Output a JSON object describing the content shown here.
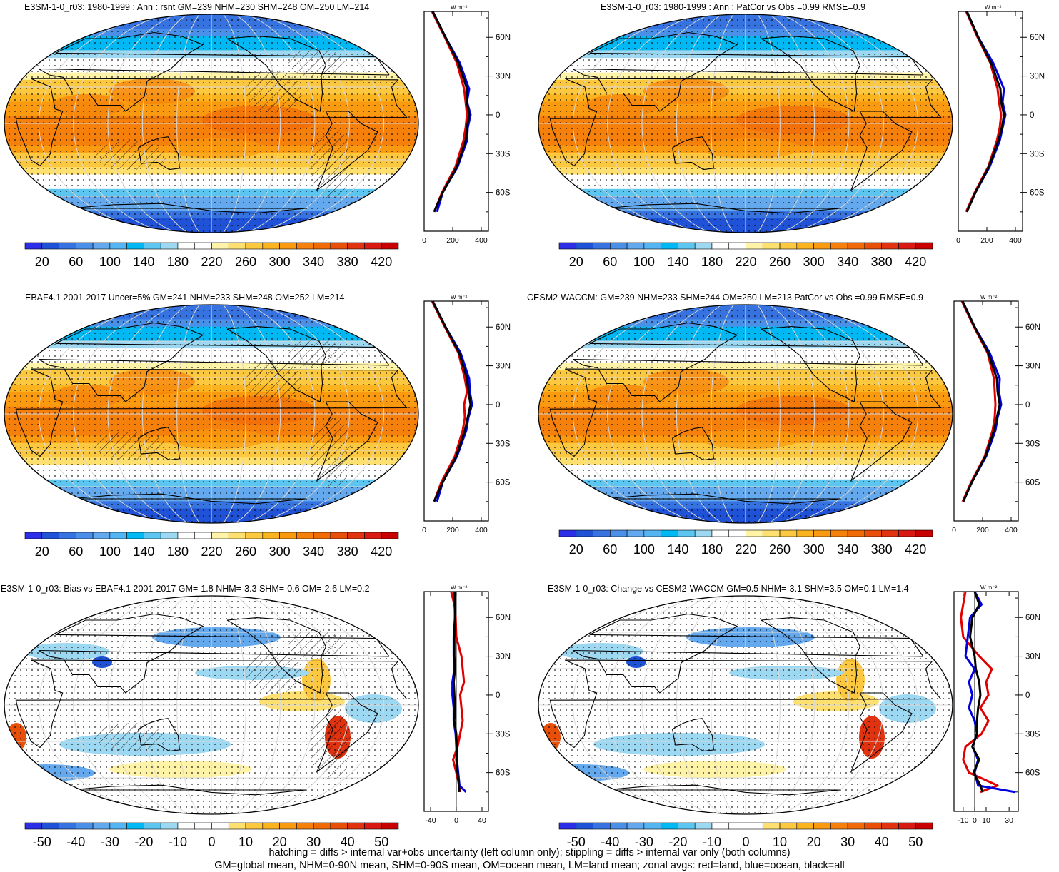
{
  "palette": [
    "#2d2ee8",
    "#1f52d6",
    "#3672e0",
    "#4a8fe8",
    "#64a8ee",
    "#55b4f2",
    "#00b9f4",
    "#5cc6f0",
    "#9dd8f2",
    "#ffffff",
    "#ffffff",
    "#fff3a8",
    "#fde070",
    "#fcc840",
    "#fbb420",
    "#f99a10",
    "#f5800c",
    "#f06a08",
    "#e8500a",
    "#e23310",
    "#d91a12",
    "#c80000"
  ],
  "panels": [
    {
      "title": "E3SM-1-0_r03: 1980-1999 : Ann : rsnt GM=239 NHM=230 SHM=248 OM=250 LM=214",
      "kind": "abs",
      "hatch": true
    },
    {
      "title": "E3SM-1-0_r03: 1980-1999 : Ann : PatCor vs Obs =0.99 RMSE=0.9",
      "kind": "abs",
      "hatch": false
    },
    {
      "title": "EBAF4.1 2001-2017 Uncer=5% GM=241 NHM=233 SHM=248 OM=252 LM=214",
      "kind": "abs",
      "hatch": true
    },
    {
      "title": "CESM2-WACCM: GM=239 NHM=233 SHM=244 OM=250 LM=213 PatCor vs Obs =0.99 RMSE=0.9",
      "kind": "abs",
      "hatch": false
    },
    {
      "title": "E3SM-1-0_r03: Bias vs EBAF4.1 2001-2017 GM=-1.8 NHM=-3.3 SHM=-0.6 OM=-2.6 LM=0.2",
      "kind": "diff",
      "hatch": true
    },
    {
      "title": "E3SM-1-0_r03: Change vs CESM2-WACCM GM=0.5 NHM=-3.1 SHM=3.5 OM=0.1 LM=1.4",
      "kind": "diff",
      "hatch": false
    }
  ],
  "units": "W m⁻²",
  "lat_labels": [
    "60N",
    "30N",
    "0",
    "30S",
    "60S"
  ],
  "abs_colorbar_labels": [
    "20",
    "60",
    "100",
    "140",
    "180",
    "220",
    "260",
    "300",
    "340",
    "380",
    "420"
  ],
  "diff_colorbar_labels": [
    "-50",
    "-40",
    "-30",
    "-20",
    "-10",
    "0",
    "10",
    "20",
    "30",
    "40",
    "50"
  ],
  "footer": {
    "line1": "hatching = diffs > internal var+obs uncertainty (left column only); stippling = diffs > internal var only (both columns)",
    "line2": "GM=global mean, NHM=0-90N mean, SHM=0-90S mean, OM=ocean mean, LM=land mean; zonal avgs: red=land, blue=ocean, black=all"
  },
  "chart_data": [
    {
      "type": "heatmap",
      "title": "E3SM-1-0_r03: 1980-1999 : Ann : rsnt GM=239 NHM=230 SHM=248 OM=250 LM=214",
      "colorbar_ticks": [
        20,
        60,
        100,
        140,
        180,
        220,
        260,
        300,
        340,
        380,
        420
      ],
      "zonal_mean": {
        "type": "line",
        "xlim": [
          0,
          450
        ],
        "xticks": [
          0,
          200,
          400
        ],
        "ylabel_ticks": [
          "60N",
          "30N",
          "0",
          "30S",
          "60S"
        ],
        "lat": [
          80,
          60,
          40,
          20,
          10,
          0,
          -10,
          -20,
          -40,
          -60,
          -75
        ],
        "series": [
          {
            "name": "all",
            "color": "#000000",
            "values": [
              60,
              150,
              240,
              300,
              300,
              315,
              300,
              290,
              230,
              130,
              70
            ]
          },
          {
            "name": "ocean",
            "color": "#0000e0",
            "values": [
              60,
              150,
              250,
              315,
              300,
              325,
              305,
              300,
              235,
              130,
              90
            ]
          },
          {
            "name": "land",
            "color": "#e00000",
            "values": [
              55,
              145,
              230,
              280,
              290,
              300,
              290,
              275,
              220,
              125,
              70
            ]
          }
        ]
      }
    },
    {
      "type": "heatmap",
      "title": "E3SM-1-0_r03: 1980-1999 : Ann : PatCor vs Obs =0.99 RMSE=0.9",
      "colorbar_ticks": [
        20,
        60,
        100,
        140,
        180,
        220,
        260,
        300,
        340,
        380,
        420
      ],
      "zonal_mean": {
        "type": "line",
        "xlim": [
          0,
          450
        ],
        "xticks": [
          0,
          200,
          400
        ],
        "ylabel_ticks": [
          "60N",
          "30N",
          "0",
          "30S",
          "60S"
        ],
        "lat": [
          80,
          60,
          40,
          20,
          10,
          0,
          -10,
          -20,
          -40,
          -60,
          -75
        ],
        "series": [
          {
            "name": "all",
            "color": "#000000",
            "values": [
              60,
              140,
              230,
              295,
              300,
              320,
              305,
              280,
              215,
              120,
              60
            ]
          },
          {
            "name": "ocean",
            "color": "#0000e0",
            "values": [
              60,
              140,
              245,
              320,
              310,
              330,
              310,
              290,
              220,
              120,
              60
            ]
          },
          {
            "name": "land",
            "color": "#e00000",
            "values": [
              55,
              135,
              225,
              275,
              285,
              300,
              290,
              270,
              210,
              115,
              55
            ]
          }
        ]
      }
    },
    {
      "type": "heatmap",
      "title": "EBAF4.1 2001-2017 Uncer=5% GM=241 NHM=233 SHM=248 OM=252 LM=214",
      "colorbar_ticks": [
        20,
        60,
        100,
        140,
        180,
        220,
        260,
        300,
        340,
        380,
        420
      ],
      "zonal_mean": {
        "type": "line",
        "xlim": [
          0,
          450
        ],
        "xticks": [
          0,
          200,
          400
        ],
        "ylabel_ticks": [
          "60N",
          "30N",
          "0",
          "30S",
          "60S"
        ],
        "lat": [
          80,
          60,
          40,
          20,
          10,
          0,
          -10,
          -20,
          -40,
          -60,
          -75
        ],
        "series": [
          {
            "name": "all",
            "color": "#000000",
            "values": [
              60,
              150,
              245,
              300,
              310,
              325,
              305,
              285,
              225,
              130,
              70
            ]
          },
          {
            "name": "ocean",
            "color": "#0000e0",
            "values": [
              60,
              150,
              255,
              315,
              320,
              335,
              310,
              295,
              230,
              130,
              90
            ]
          },
          {
            "name": "land",
            "color": "#e00000",
            "values": [
              55,
              145,
              240,
              285,
              300,
              280,
              285,
              270,
              215,
              120,
              70
            ]
          }
        ]
      }
    },
    {
      "type": "heatmap",
      "title": "CESM2-WACCM: GM=239 NHM=233 SHM=244 OM=250 LM=213 PatCor vs Obs =0.99 RMSE=0.9",
      "colorbar_ticks": [
        20,
        60,
        100,
        140,
        180,
        220,
        260,
        300,
        340,
        380,
        420
      ],
      "zonal_mean": {
        "type": "line",
        "xlim": [
          0,
          450
        ],
        "xticks": [
          0,
          200,
          400
        ],
        "ylabel_ticks": [
          "60N",
          "30N",
          "0",
          "30S",
          "60S"
        ],
        "lat": [
          80,
          60,
          40,
          20,
          10,
          0,
          -10,
          -20,
          -40,
          -60,
          -75
        ],
        "series": [
          {
            "name": "all",
            "color": "#000000",
            "values": [
              60,
              145,
              240,
              300,
              305,
              320,
              300,
              280,
              220,
              125,
              65
            ]
          },
          {
            "name": "ocean",
            "color": "#0000e0",
            "values": [
              60,
              145,
              250,
              320,
              315,
              330,
              305,
              290,
              225,
              125,
              65
            ]
          },
          {
            "name": "land",
            "color": "#e00000",
            "values": [
              55,
              140,
              235,
              280,
              285,
              290,
              285,
              270,
              215,
              120,
              60
            ]
          }
        ]
      }
    },
    {
      "type": "heatmap",
      "title": "E3SM-1-0_r03: Bias vs EBAF4.1 2001-2017 GM=-1.8 NHM=-3.3 SHM=-0.6 OM=-2.6 LM=0.2",
      "colorbar_ticks": [
        -50,
        -40,
        -30,
        -20,
        -10,
        0,
        10,
        20,
        30,
        40,
        50
      ],
      "zonal_mean": {
        "type": "line",
        "xlim": [
          -50,
          50
        ],
        "xticks": [
          -40,
          0,
          40
        ],
        "ylabel_ticks": [
          "60N",
          "30N",
          "0",
          "30S",
          "60S"
        ],
        "lat": [
          80,
          70,
          60,
          45,
          30,
          20,
          10,
          0,
          -10,
          -20,
          -30,
          -40,
          -50,
          -60,
          -70,
          -75
        ],
        "series": [
          {
            "name": "all",
            "color": "#000000",
            "values": [
              -2,
              -2,
              -2,
              -3,
              -3,
              -2,
              -4,
              -3,
              -2,
              -3,
              0,
              1,
              0,
              2,
              4,
              5
            ],
            "zero_ref": 0
          },
          {
            "name": "ocean",
            "color": "#0000e0",
            "values": [
              -3,
              -2,
              -2,
              -4,
              -4,
              -3,
              -6,
              -6,
              -4,
              -4,
              -1,
              0,
              1,
              3,
              5,
              15
            ]
          },
          {
            "name": "land",
            "color": "#e00000",
            "values": [
              -8,
              -3,
              -1,
              0,
              8,
              10,
              12,
              6,
              8,
              10,
              6,
              2,
              -5,
              0,
              5,
              5
            ]
          }
        ]
      }
    },
    {
      "type": "heatmap",
      "title": "E3SM-1-0_r03: Change vs CESM2-WACCM GM=0.5 NHM=-3.1 SHM=3.5 OM=0.1 LM=1.4",
      "colorbar_ticks": [
        -50,
        -40,
        -30,
        -20,
        -10,
        0,
        10,
        20,
        30,
        40,
        50
      ],
      "zonal_mean": {
        "type": "line",
        "xlim": [
          -18,
          38
        ],
        "xticks": [
          -10,
          0,
          10,
          30
        ],
        "ylabel_ticks": [
          "60N",
          "30N",
          "0",
          "30S",
          "60S"
        ],
        "lat": [
          80,
          70,
          60,
          45,
          30,
          20,
          10,
          0,
          -10,
          -20,
          -30,
          -40,
          -50,
          -60,
          -70,
          -75
        ],
        "series": [
          {
            "name": "all",
            "color": "#000000",
            "values": [
              0,
              4,
              -2,
              -4,
              0,
              1,
              4,
              5,
              3,
              2,
              2,
              -2,
              4,
              -1,
              5,
              7
            ]
          },
          {
            "name": "ocean",
            "color": "#0000e0",
            "values": [
              0,
              6,
              -4,
              -6,
              -8,
              0,
              -5,
              -2,
              -5,
              0,
              2,
              -2,
              3,
              0,
              3,
              35
            ]
          },
          {
            "name": "land",
            "color": "#e00000",
            "values": [
              -8,
              -10,
              -12,
              -10,
              4,
              15,
              10,
              12,
              5,
              12,
              6,
              -8,
              -10,
              -5,
              20,
              5
            ]
          }
        ]
      }
    }
  ]
}
